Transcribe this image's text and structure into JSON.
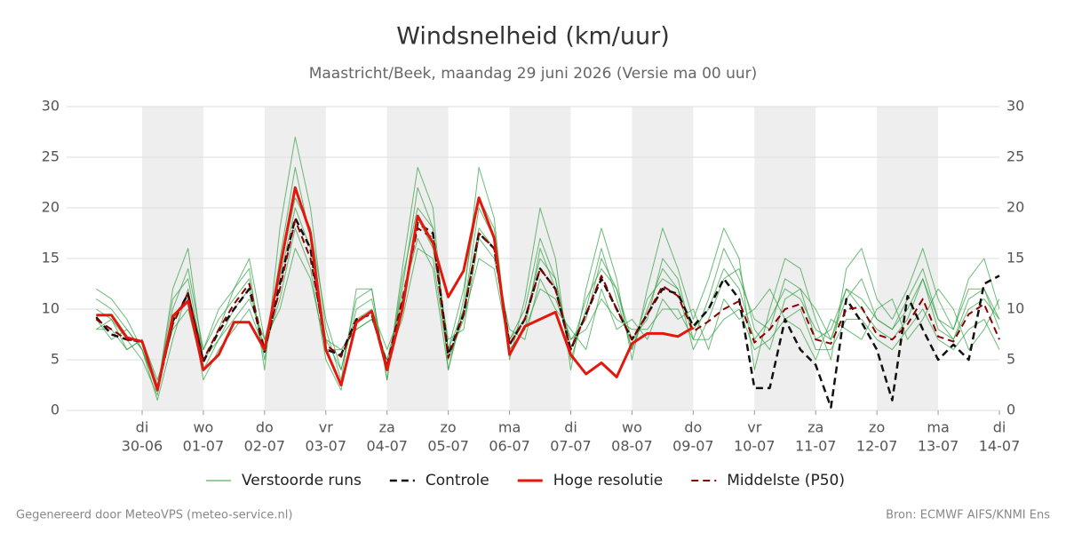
{
  "chart_data": {
    "type": "line",
    "title": "Windsnelheid (km/uur)",
    "subtitle": "Maastricht/Beek, maandag 29 juni 2026 (Versie ma 00 uur)",
    "footer_left": "Gegenereerd door MeteoVPS (meteo-service.nl)",
    "footer_right": "Bron: ECMWF AIFS/KNMI Ens",
    "xlim": [
      -0.233,
      15
    ],
    "xticks": [
      {
        "value": 1,
        "label": "di",
        "date": "30-06"
      },
      {
        "value": 2,
        "label": "wo",
        "date": "01-07"
      },
      {
        "value": 3,
        "label": "do",
        "date": "02-07"
      },
      {
        "value": 4,
        "label": "vr",
        "date": "03-07"
      },
      {
        "value": 5,
        "label": "za",
        "date": "04-07"
      },
      {
        "value": 6,
        "label": "zo",
        "date": "05-07"
      },
      {
        "value": 7,
        "label": "ma",
        "date": "06-07"
      },
      {
        "value": 8,
        "label": "di",
        "date": "07-07"
      },
      {
        "value": 9,
        "label": "wo",
        "date": "08-07"
      },
      {
        "value": 10,
        "label": "do",
        "date": "09-07"
      },
      {
        "value": 11,
        "label": "vr",
        "date": "10-07"
      },
      {
        "value": 12,
        "label": "za",
        "date": "11-07"
      },
      {
        "value": 13,
        "label": "zo",
        "date": "12-07"
      },
      {
        "value": 14,
        "label": "ma",
        "date": "13-07"
      },
      {
        "value": 15,
        "label": "di",
        "date": "14-07"
      }
    ],
    "ylim": [
      0,
      30
    ],
    "yticks": [
      0,
      5,
      10,
      15,
      20,
      25,
      30
    ],
    "y2lim": [
      0,
      30
    ],
    "y2ticks": [
      0,
      5,
      10,
      15,
      20,
      25,
      30
    ],
    "grid": true,
    "legend": "bottom",
    "x": [
      0.25,
      0.5,
      0.75,
      1,
      1.25,
      1.5,
      1.75,
      2,
      2.25,
      2.5,
      2.75,
      3,
      3.25,
      3.5,
      3.75,
      4,
      4.25,
      4.5,
      4.75,
      5,
      5.25,
      5.5,
      5.75,
      6,
      6.25,
      6.5,
      6.75,
      7,
      7.25,
      7.5,
      7.75,
      8,
      8.25,
      8.5,
      8.75,
      9,
      9.25,
      9.5,
      9.75,
      10,
      10.25,
      10.5,
      10.75,
      11,
      11.25,
      11.5,
      11.75,
      12,
      12.25,
      12.5,
      12.75,
      13,
      13.25,
      13.5,
      13.75,
      14,
      14.25,
      14.5,
      14.75,
      15
    ],
    "series": [
      {
        "name": "Verstoorde runs",
        "color": "#2e9e3e",
        "width": 1,
        "dash": false,
        "values": [
          10,
          9,
          7,
          5,
          1.5,
          10,
          14,
          6,
          9,
          11,
          13,
          5,
          15,
          24,
          17,
          7,
          4,
          10,
          11,
          4,
          12,
          22,
          18,
          6,
          10,
          20,
          17,
          7,
          10,
          17,
          13,
          5,
          10,
          16,
          11,
          6,
          10,
          14,
          12,
          8,
          10,
          14,
          12,
          7,
          9,
          12,
          11,
          8,
          7,
          11,
          13,
          9,
          8,
          10,
          13,
          9,
          7,
          11,
          12,
          8
        ]
      },
      {
        "name": "Verstoorde runs",
        "color": "#2e9e3e",
        "width": 1,
        "dash": false,
        "values": [
          8,
          8,
          6,
          7,
          3,
          8,
          10,
          4,
          7,
          9,
          11,
          7,
          10,
          16,
          13,
          6,
          6,
          8,
          9,
          5,
          9,
          16,
          15,
          5,
          9,
          15,
          14,
          6,
          8,
          12,
          11,
          7,
          8,
          11,
          9,
          8,
          8,
          10,
          10,
          7,
          7,
          9,
          10,
          6,
          7,
          9,
          10,
          6,
          6,
          9,
          9,
          7,
          6,
          8,
          10,
          7,
          6,
          8,
          9,
          6
        ]
      },
      {
        "name": "Verstoorde runs",
        "color": "#2e9e3e",
        "width": 1,
        "dash": false,
        "values": [
          11,
          10,
          8,
          6,
          2,
          12,
          16,
          5,
          8,
          12,
          14,
          4,
          18,
          27,
          20,
          8,
          3,
          12,
          12,
          3,
          14,
          24,
          20,
          4,
          11,
          24,
          19,
          5,
          11,
          20,
          15,
          4,
          12,
          18,
          13,
          5,
          12,
          18,
          14,
          9,
          13,
          18,
          15,
          4,
          10,
          15,
          14,
          9,
          5,
          14,
          16,
          11,
          9,
          12,
          16,
          11,
          8,
          13,
          15,
          10
        ]
      },
      {
        "name": "Verstoorde runs",
        "color": "#2e9e3e",
        "width": 1,
        "dash": false,
        "values": [
          9,
          7,
          8,
          6,
          1,
          7,
          12,
          3,
          6,
          8,
          10,
          6,
          11,
          18,
          14,
          5,
          2,
          9,
          10,
          6,
          10,
          19,
          16,
          7,
          8,
          17,
          15,
          8,
          7,
          13,
          10,
          8,
          6,
          12,
          8,
          9,
          7,
          11,
          9,
          10,
          6,
          11,
          9,
          10,
          12,
          9,
          8,
          5,
          9,
          8,
          7,
          10,
          11,
          7,
          9,
          12,
          10,
          6,
          8,
          11
        ]
      },
      {
        "name": "Verstoorde runs",
        "color": "#2e9e3e",
        "width": 1,
        "dash": false,
        "values": [
          8,
          9,
          6,
          7,
          2.5,
          9,
          11,
          6,
          10,
          12,
          15,
          7,
          13,
          20,
          16,
          7,
          6,
          8,
          9,
          5,
          11,
          17,
          14,
          4,
          10,
          18,
          16,
          7,
          9,
          15,
          13,
          6,
          11,
          14,
          12,
          6,
          11,
          13,
          12,
          6,
          9,
          13,
          14,
          8,
          6,
          11,
          12,
          7,
          8,
          12,
          10,
          8,
          7,
          9,
          13,
          8,
          7,
          10,
          11,
          9
        ]
      },
      {
        "name": "Verstoorde runs",
        "color": "#2e9e3e",
        "width": 1,
        "dash": false,
        "values": [
          12,
          11,
          9,
          6,
          2,
          11,
          13,
          5,
          7,
          10,
          12,
          6,
          14,
          21,
          18,
          9,
          4,
          11,
          12,
          3,
          13,
          20,
          18,
          6,
          12,
          21,
          18,
          6,
          8,
          16,
          12,
          7,
          9,
          15,
          12,
          7,
          9,
          15,
          13,
          7,
          11,
          16,
          13,
          9,
          8,
          13,
          12,
          10,
          7,
          12,
          11,
          9,
          8,
          11,
          14,
          9,
          8,
          12,
          12,
          9
        ]
      },
      {
        "name": "Controle",
        "color": "#111111",
        "width": 2.5,
        "dash": true,
        "values": [
          9.2,
          7.5,
          7,
          6.8,
          2,
          8.8,
          11.5,
          4.8,
          7.8,
          10,
          12,
          5.8,
          12.5,
          19,
          16,
          6,
          5.5,
          9,
          9.5,
          4.2,
          10.5,
          18.5,
          17.5,
          5.5,
          9.5,
          17.5,
          16,
          6.5,
          9,
          14,
          12,
          6,
          9.5,
          13,
          10,
          7,
          9.5,
          12,
          11.5,
          8.3,
          10,
          13,
          11,
          2.2,
          2.2,
          9,
          6,
          4.5,
          0.3,
          11,
          8.7,
          6,
          1,
          11.3,
          8,
          5,
          6.5,
          5,
          12.5,
          13.3
        ]
      },
      {
        "name": "Middelste (P50)",
        "color": "#8b0000",
        "width": 2,
        "dash": true,
        "values": [
          9,
          8,
          7,
          6.8,
          2.2,
          8.5,
          11.6,
          5,
          8,
          10.5,
          12.5,
          6,
          12,
          18.8,
          15,
          6.5,
          5.3,
          8.8,
          9.8,
          4.5,
          11,
          18,
          17,
          5.2,
          9.5,
          17.5,
          16,
          6.5,
          9,
          14,
          12,
          6,
          9.5,
          13.3,
          10,
          7,
          9.5,
          12.3,
          11.3,
          7.8,
          8.8,
          10,
          10.8,
          6.7,
          8,
          10,
          10.5,
          7,
          6.6,
          10,
          10.2,
          7.5,
          7,
          8.5,
          11,
          7.3,
          6.8,
          9.5,
          10.5,
          7
        ]
      },
      {
        "name": "Hoge resolutie",
        "color": "#e3170d",
        "width": 3,
        "dash": false,
        "values": [
          9.4,
          9.4,
          7.2,
          6.8,
          2.0,
          9.3,
          10.8,
          4.0,
          5.5,
          8.7,
          8.7,
          6.0,
          14,
          22,
          17.5,
          6.0,
          2.5,
          8.7,
          9.8,
          4.0,
          10,
          19.2,
          16.5,
          11.2,
          13.8,
          21,
          17,
          5.5,
          8.3,
          9,
          9.7,
          5.5,
          3.6,
          4.7,
          3.3,
          6.6,
          7.6,
          7.6,
          7.3,
          8.2,
          null,
          null,
          null,
          null,
          null,
          null,
          null,
          null,
          null,
          null,
          null,
          null,
          null,
          null,
          null,
          null,
          null,
          null,
          null,
          null
        ]
      }
    ]
  }
}
